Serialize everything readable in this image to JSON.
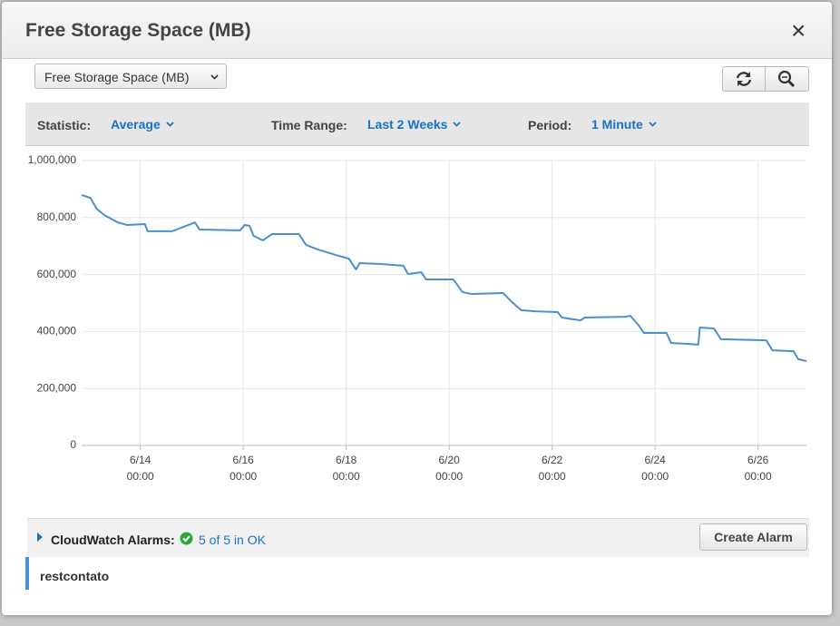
{
  "header": {
    "title": "Free Storage Space (MB)",
    "close": "×"
  },
  "metric_select": "Free Storage Space (MB)",
  "filters": [
    {
      "label": "Statistic:",
      "value": "Average"
    },
    {
      "label": "Time Range:",
      "value": "Last 2 Weeks"
    },
    {
      "label": "Period:",
      "value": "1 Minute"
    }
  ],
  "chart_data": {
    "type": "line",
    "color": "#4a90d0",
    "grid": true,
    "x": [
      12.86,
      13.03,
      13.15,
      13.3,
      13.56,
      13.74,
      14.09,
      14.14,
      14.62,
      15.06,
      15.15,
      15.94,
      16.03,
      16.12,
      16.2,
      16.38,
      16.56,
      17.08,
      17.22,
      17.44,
      17.79,
      18.05,
      18.19,
      18.26,
      18.67,
      19.11,
      19.2,
      19.46,
      19.55,
      20.08,
      20.26,
      20.43,
      21.05,
      21.22,
      21.4,
      21.67,
      22.11,
      22.19,
      22.55,
      22.63,
      23.43,
      23.52,
      23.69,
      23.78,
      24.22,
      24.31,
      24.84,
      24.87,
      25.14,
      25.28,
      26.16,
      26.28,
      26.69,
      26.78,
      26.94
    ],
    "values": [
      879000,
      869000,
      831000,
      809000,
      783000,
      774000,
      777000,
      752000,
      752000,
      783000,
      758000,
      755000,
      774000,
      771000,
      736000,
      720000,
      742000,
      742000,
      704000,
      688000,
      669000,
      656000,
      618000,
      640000,
      637000,
      631000,
      602000,
      608000,
      583000,
      583000,
      538000,
      532000,
      535000,
      503000,
      475000,
      471000,
      468000,
      449000,
      439000,
      449000,
      452000,
      455000,
      420000,
      395000,
      395000,
      360000,
      354000,
      414000,
      411000,
      373000,
      369000,
      334000,
      331000,
      303000,
      296000
    ],
    "xlim": [
      12.86,
      26.94
    ],
    "xticks": [
      {
        "value": 14,
        "label": "6/14\n00:00"
      },
      {
        "value": 16,
        "label": "6/16\n00:00"
      },
      {
        "value": 18,
        "label": "6/18\n00:00"
      },
      {
        "value": 20,
        "label": "6/20\n00:00"
      },
      {
        "value": 22,
        "label": "6/22\n00:00"
      },
      {
        "value": 24,
        "label": "6/24\n00:00"
      },
      {
        "value": 26,
        "label": "6/26\n00:00"
      }
    ],
    "ylim": [
      0,
      1000000
    ],
    "yticks": [
      0,
      {
        "value": 200000,
        "label": "200,000"
      },
      {
        "value": 400000,
        "label": "400,000"
      },
      {
        "value": 600000,
        "label": "600,000"
      },
      {
        "value": 800000,
        "label": "800,000"
      },
      {
        "value": 1000000,
        "label": "1,000,000"
      }
    ]
  },
  "alarms": {
    "label": "CloudWatch Alarms:",
    "status": "5 of 5 in OK",
    "button": "Create Alarm"
  },
  "instance": "restcontato"
}
